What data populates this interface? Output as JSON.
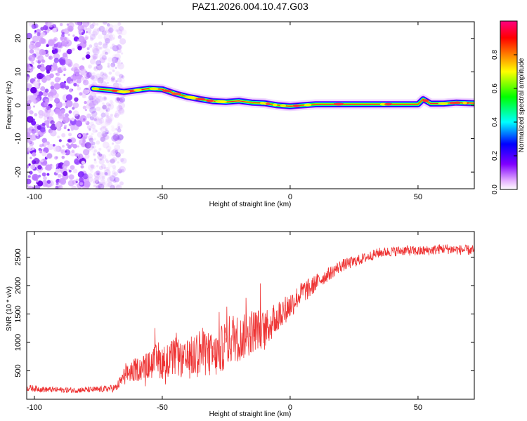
{
  "chart_data": [
    {
      "type": "heatmap",
      "title": "PAZ1.2026.004.10.47.G03",
      "xlabel": "Height of straight line (km)",
      "ylabel": "Frequency (Hz)",
      "xlim": [
        -103,
        72
      ],
      "ylim": [
        -25,
        25
      ],
      "x_ticks": [
        -100,
        -50,
        0,
        50
      ],
      "x_tick_labels": [
        "-100",
        "-50",
        "0",
        "50"
      ],
      "y_ticks": [
        20,
        10,
        0,
        -10,
        -20
      ],
      "y_tick_labels": [
        "20",
        "10",
        "0",
        "-10",
        "-20"
      ],
      "ridge": {
        "description": "dominant spectral line",
        "x": [
          -77,
          -70,
          -65,
          -60,
          -55,
          -50,
          -45,
          -40,
          -35,
          -30,
          -25,
          -20,
          -15,
          -10,
          -5,
          0,
          5,
          10,
          20,
          30,
          40,
          50,
          52,
          55,
          60,
          65,
          72
        ],
        "y": [
          5,
          4.5,
          4,
          4.5,
          5,
          4.8,
          3.5,
          2.5,
          1.8,
          1.2,
          1.0,
          1.3,
          0.8,
          0.6,
          0,
          -0.3,
          0,
          0.3,
          0.3,
          0.3,
          0.3,
          0.3,
          1.8,
          0.5,
          0.5,
          0.8,
          0.6
        ]
      },
      "noise_region_x": [
        -103,
        -73
      ],
      "colorbar": {
        "label": "Normalized spectral amplitude",
        "range": [
          0,
          1
        ],
        "ticks": [
          0,
          0.2,
          0.4,
          0.6,
          0.8
        ],
        "tick_labels": [
          "0.0",
          "0.2",
          "0.4",
          "0.6",
          "0.8"
        ],
        "colors": [
          "#ffffff",
          "#e6b3ff",
          "#8000ff",
          "#0000ff",
          "#00ffff",
          "#00ff00",
          "#ffff00",
          "#ff8000",
          "#ff0000",
          "#ff0080"
        ]
      }
    },
    {
      "type": "line",
      "xlabel": "Height of straight line (km)",
      "ylabel": "SNR (10 * v/v)",
      "xlim": [
        -103,
        72
      ],
      "ylim": [
        0,
        2950
      ],
      "x_ticks": [
        -100,
        -50,
        0,
        50
      ],
      "x_tick_labels": [
        "-100",
        "-50",
        "0",
        "50"
      ],
      "y_ticks": [
        500,
        1000,
        1500,
        2000,
        2500
      ],
      "y_tick_labels": [
        "500",
        "1000",
        "1500",
        "2000",
        "2500"
      ],
      "color": "#ee3333",
      "series": [
        {
          "name": "SNR",
          "x": [
            -103,
            -95,
            -85,
            -75,
            -68,
            -65,
            -62,
            -58,
            -55,
            -52,
            -50,
            -47,
            -45,
            -42,
            -40,
            -38,
            -35,
            -33,
            -30,
            -28,
            -25,
            -22,
            -20,
            -18,
            -15,
            -12,
            -10,
            -8,
            -5,
            -3,
            0,
            3,
            5,
            8,
            10,
            15,
            20,
            25,
            30,
            35,
            40,
            45,
            50,
            55,
            60,
            65,
            72
          ],
          "y": [
            200,
            170,
            160,
            170,
            200,
            400,
            500,
            550,
            600,
            680,
            650,
            700,
            750,
            650,
            700,
            750,
            850,
            800,
            750,
            800,
            1000,
            1100,
            1050,
            1100,
            1200,
            1250,
            1200,
            1300,
            1450,
            1550,
            1650,
            1800,
            1900,
            1950,
            2050,
            2200,
            2350,
            2420,
            2500,
            2580,
            2600,
            2620,
            2600,
            2620,
            2650,
            2630,
            2620
          ],
          "noise_amp": [
            60,
            50,
            50,
            55,
            70,
            150,
            200,
            220,
            250,
            300,
            300,
            300,
            350,
            300,
            350,
            400,
            450,
            400,
            400,
            400,
            450,
            450,
            400,
            400,
            400,
            350,
            350,
            300,
            300,
            250,
            250,
            200,
            200,
            180,
            150,
            120,
            110,
            100,
            90,
            90,
            90,
            90,
            90,
            90,
            90,
            90,
            90
          ]
        }
      ]
    }
  ]
}
